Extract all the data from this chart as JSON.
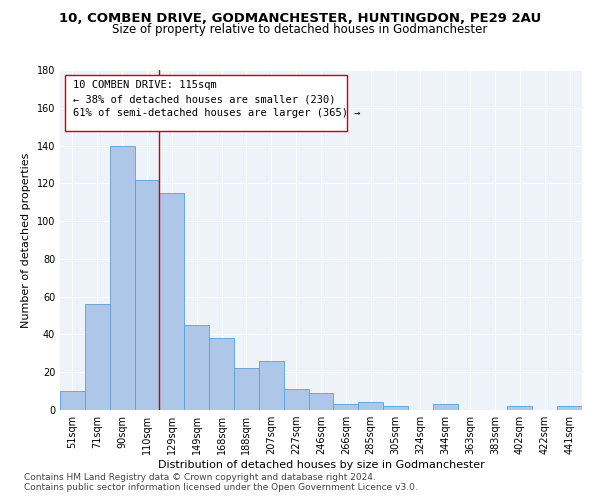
{
  "title_line1": "10, COMBEN DRIVE, GODMANCHESTER, HUNTINGDON, PE29 2AU",
  "title_line2": "Size of property relative to detached houses in Godmanchester",
  "xlabel": "Distribution of detached houses by size in Godmanchester",
  "ylabel": "Number of detached properties",
  "categories": [
    "51sqm",
    "71sqm",
    "90sqm",
    "110sqm",
    "129sqm",
    "149sqm",
    "168sqm",
    "188sqm",
    "207sqm",
    "227sqm",
    "246sqm",
    "266sqm",
    "285sqm",
    "305sqm",
    "324sqm",
    "344sqm",
    "363sqm",
    "383sqm",
    "402sqm",
    "422sqm",
    "441sqm"
  ],
  "values": [
    10,
    56,
    140,
    122,
    115,
    45,
    38,
    22,
    26,
    11,
    9,
    3,
    4,
    2,
    0,
    3,
    0,
    0,
    2,
    0,
    2
  ],
  "bar_color": "#aec6e8",
  "bar_edge_color": "#5a9fd4",
  "vline_x": 3,
  "vline_color": "#cc0000",
  "annotation_line1": "10 COMBEN DRIVE: 115sqm",
  "annotation_line2": "← 38% of detached houses are smaller (230)",
  "annotation_line3": "61% of semi-detached houses are larger (365) →",
  "ylim": [
    0,
    180
  ],
  "yticks": [
    0,
    20,
    40,
    60,
    80,
    100,
    120,
    140,
    160,
    180
  ],
  "bg_color": "#eef2f9",
  "footer_line1": "Contains HM Land Registry data © Crown copyright and database right 2024.",
  "footer_line2": "Contains public sector information licensed under the Open Government Licence v3.0.",
  "title_fontsize": 9.5,
  "subtitle_fontsize": 8.5,
  "axis_label_fontsize": 8,
  "tick_fontsize": 7,
  "annotation_fontsize": 7.5,
  "footer_fontsize": 6.5
}
